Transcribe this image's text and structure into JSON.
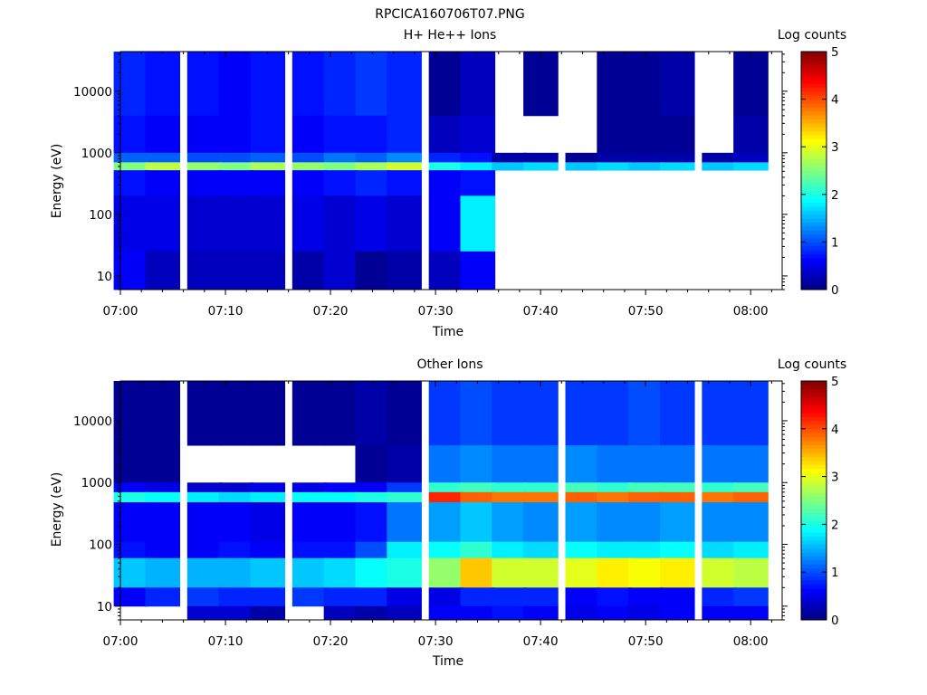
{
  "figure_title": "RPCICA160706T07.PNG",
  "chart_data": [
    {
      "type": "heatmap",
      "title": "H+ He++ Ions",
      "xlabel": "Time",
      "ylabel": "Energy (eV)",
      "yscale": "log",
      "xlim": [
        "07:00",
        "08:03"
      ],
      "ylim": [
        6,
        44000
      ],
      "x_ticks": [
        "07:00",
        "07:10",
        "07:20",
        "07:30",
        "07:40",
        "07:50",
        "08:00"
      ],
      "y_ticks": [
        "10",
        "100",
        "1000",
        "10000"
      ],
      "time_bins": [
        "07:01",
        "07:04",
        "07:08",
        "07:11",
        "07:14",
        "07:18",
        "07:21",
        "07:24",
        "07:27",
        "07:31",
        "07:34",
        "07:37",
        "07:40",
        "07:44",
        "07:47",
        "07:50",
        "07:53",
        "07:57",
        "08:00"
      ],
      "energy_bands_eV": [
        {
          "range": [
            4000,
            44000
          ],
          "log_counts_by_bin": [
            0.8,
            0.7,
            0.7,
            0.6,
            0.7,
            0.7,
            0.8,
            0.9,
            0.8,
            0.1,
            0.3,
            0,
            0.1,
            0,
            0.1,
            0.1,
            0.2,
            0,
            0.1
          ]
        },
        {
          "range": [
            1000,
            4000
          ],
          "log_counts_by_bin": [
            0.7,
            0.6,
            0.6,
            0.6,
            0.7,
            0.6,
            0.7,
            0.7,
            0.8,
            0.3,
            0.4,
            0,
            0,
            0,
            0.1,
            0.1,
            0.1,
            0,
            0.2
          ]
        },
        {
          "range": [
            700,
            1000
          ],
          "log_counts_by_bin": [
            1.1,
            1.1,
            1.0,
            1.0,
            1.1,
            1.0,
            1.2,
            1.1,
            1.3,
            0.8,
            0.7,
            0.2,
            0.2,
            0.1,
            0.2,
            0.2,
            0.2,
            0.2,
            0.3
          ]
        },
        {
          "range": [
            520,
            700
          ],
          "log_counts_by_bin": [
            2.5,
            2.8,
            2.6,
            2.5,
            2.7,
            2.6,
            2.5,
            2.7,
            2.9,
            2.0,
            1.8,
            1.6,
            1.7,
            1.6,
            1.7,
            1.6,
            1.7,
            1.6,
            1.7
          ]
        },
        {
          "range": [
            200,
            520
          ],
          "log_counts_by_bin": [
            0.7,
            0.6,
            0.6,
            0.6,
            0.6,
            0.6,
            0.7,
            0.8,
            0.7,
            0.6,
            0.7,
            0,
            0,
            0,
            0,
            0,
            0,
            0,
            0
          ]
        },
        {
          "range": [
            25,
            200
          ],
          "log_counts_by_bin": [
            0.5,
            0.5,
            0.4,
            0.4,
            0.4,
            0.5,
            0.4,
            0.5,
            0.4,
            0.6,
            1.8,
            0,
            0,
            0,
            0,
            0,
            0,
            0,
            0
          ]
        },
        {
          "range": [
            6,
            25
          ],
          "log_counts_by_bin": [
            0.6,
            0.3,
            0.3,
            0.3,
            0.3,
            0.2,
            0.4,
            0.1,
            0.2,
            0.3,
            0.6,
            0,
            0,
            0,
            0,
            0,
            0,
            0,
            0
          ]
        }
      ],
      "colorbar": {
        "title": "Log counts",
        "ticks": [
          "0",
          "1",
          "2",
          "3",
          "4",
          "5"
        ],
        "range": [
          0,
          5
        ],
        "colormap": "jet"
      }
    },
    {
      "type": "heatmap",
      "title": "Other Ions",
      "xlabel": "Time",
      "ylabel": "Energy (eV)",
      "yscale": "log",
      "xlim": [
        "07:00",
        "08:03"
      ],
      "ylim": [
        6,
        44000
      ],
      "x_ticks": [
        "07:00",
        "07:10",
        "07:20",
        "07:30",
        "07:40",
        "07:50",
        "08:00"
      ],
      "y_ticks": [
        "10",
        "100",
        "1000",
        "10000"
      ],
      "time_bins": [
        "07:01",
        "07:04",
        "07:08",
        "07:11",
        "07:14",
        "07:18",
        "07:21",
        "07:24",
        "07:27",
        "07:31",
        "07:34",
        "07:37",
        "07:40",
        "07:44",
        "07:47",
        "07:50",
        "07:53",
        "07:57",
        "08:00"
      ],
      "energy_bands_eV": [
        {
          "range": [
            4000,
            44000
          ],
          "log_counts_by_bin": [
            0.1,
            0.1,
            0.1,
            0.1,
            0.1,
            0.1,
            0.1,
            0.2,
            0.1,
            0.9,
            1.0,
            0.9,
            0.9,
            0.9,
            0.9,
            1.0,
            0.9,
            0.9,
            0.9
          ]
        },
        {
          "range": [
            1000,
            4000
          ],
          "log_counts_by_bin": [
            0.1,
            0.1,
            0,
            0,
            0,
            0,
            0,
            0.1,
            0.2,
            1.2,
            1.3,
            1.2,
            1.2,
            1.3,
            1.2,
            1.2,
            1.2,
            1.2,
            1.2
          ]
        },
        {
          "range": [
            700,
            1000
          ],
          "log_counts_by_bin": [
            0.6,
            0.5,
            0.4,
            0.4,
            0.5,
            0.5,
            0.6,
            0.6,
            0.9,
            2.1,
            2.2,
            2.1,
            2.1,
            2.2,
            2.1,
            2.2,
            2.2,
            2.1,
            2.2
          ]
        },
        {
          "range": [
            480,
            700
          ],
          "log_counts_by_bin": [
            2.0,
            1.9,
            1.8,
            1.7,
            1.8,
            1.9,
            1.9,
            2.0,
            2.1,
            4.2,
            3.9,
            3.8,
            3.8,
            3.9,
            3.8,
            3.9,
            3.9,
            3.8,
            3.9
          ]
        },
        {
          "range": [
            110,
            480
          ],
          "log_counts_by_bin": [
            0.6,
            0.6,
            0.6,
            0.6,
            0.5,
            0.6,
            0.6,
            0.7,
            1.2,
            1.4,
            1.6,
            1.4,
            1.3,
            1.4,
            1.3,
            1.3,
            1.4,
            1.3,
            1.3
          ]
        },
        {
          "range": [
            60,
            110
          ],
          "log_counts_by_bin": [
            0.7,
            0.6,
            0.6,
            0.7,
            0.6,
            0.7,
            0.7,
            1.0,
            1.8,
            1.9,
            2.1,
            1.8,
            1.7,
            1.9,
            1.8,
            1.8,
            1.9,
            1.7,
            1.8
          ]
        },
        {
          "range": [
            20,
            60
          ],
          "log_counts_by_bin": [
            1.6,
            1.5,
            1.5,
            1.5,
            1.6,
            1.6,
            1.7,
            1.9,
            2.0,
            2.6,
            3.4,
            2.9,
            2.9,
            3.0,
            3.2,
            3.1,
            3.2,
            2.9,
            2.8
          ]
        },
        {
          "range": [
            10,
            20
          ],
          "log_counts_by_bin": [
            0.6,
            0.8,
            0.9,
            0.8,
            0.8,
            0.9,
            0.8,
            0.8,
            0.5,
            0.5,
            0.8,
            0.8,
            0.8,
            0.6,
            0.7,
            0.6,
            0.6,
            0.8,
            0.9
          ]
        },
        {
          "range": [
            6,
            10
          ],
          "log_counts_by_bin": [
            0,
            0,
            0.4,
            0.4,
            0.2,
            0,
            0.3,
            0.2,
            0.3,
            0.6,
            0.6,
            0.7,
            0.6,
            0.5,
            0.6,
            0.5,
            0.6,
            0.6,
            0.6
          ]
        }
      ],
      "colorbar": {
        "title": "Log counts",
        "ticks": [
          "0",
          "1",
          "2",
          "3",
          "4",
          "5"
        ],
        "range": [
          0,
          5
        ],
        "colormap": "jet"
      }
    }
  ]
}
